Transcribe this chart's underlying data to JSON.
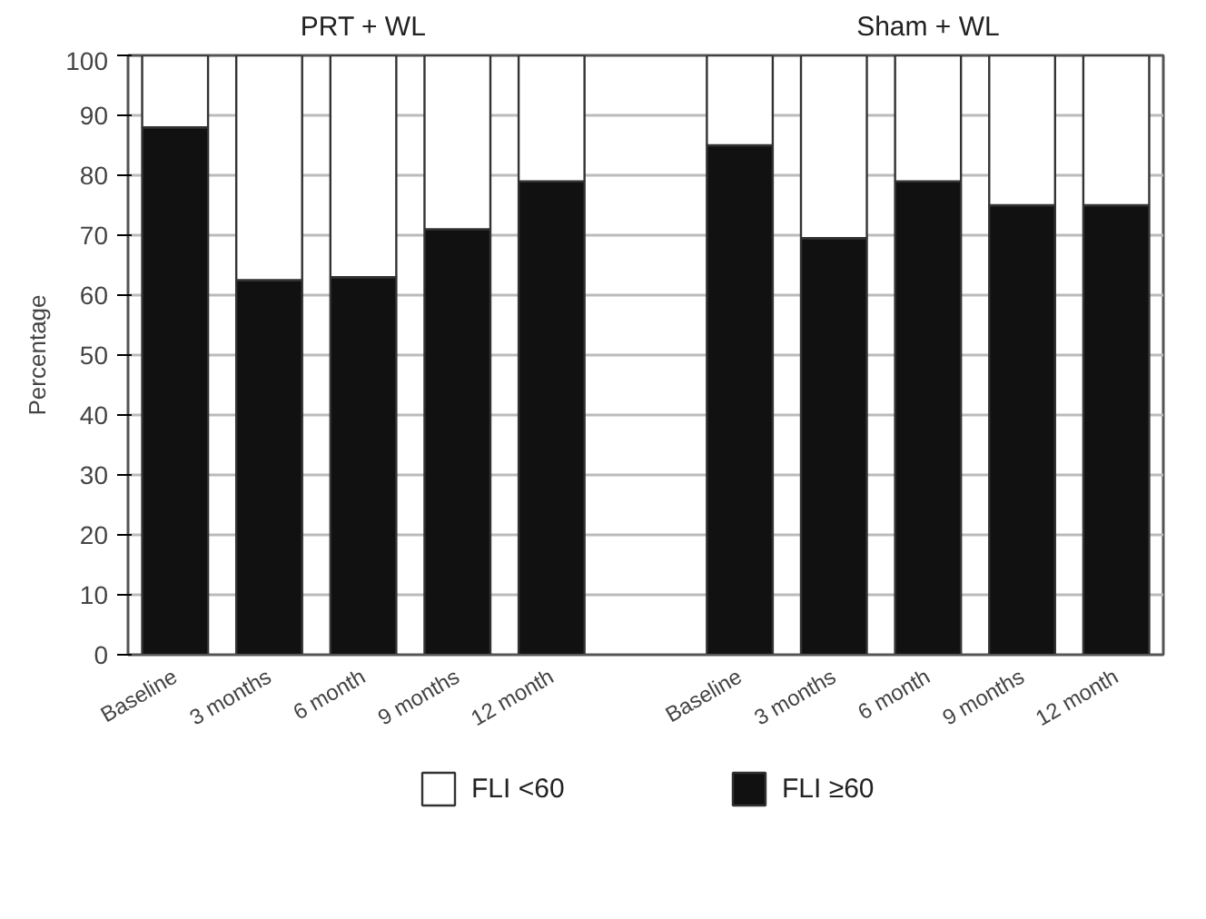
{
  "chart_data": {
    "type": "bar",
    "stacked": true,
    "ylabel": "Percentage",
    "annotations": [
      "PRT + WL",
      "Sham + WL"
    ],
    "categories": [
      "Baseline",
      "3 months",
      "6 month",
      "9 months",
      "12 month",
      null,
      "Baseline",
      "3 months",
      "6 month",
      "9 months",
      "12 month"
    ],
    "series": [
      {
        "name": "FLI ≥60",
        "color": "#111111",
        "values": [
          88,
          62.5,
          63,
          71,
          79,
          null,
          85,
          69.5,
          79,
          75,
          75
        ]
      },
      {
        "name": "FLI <60",
        "color": "#ffffff",
        "values": [
          12,
          37.5,
          37,
          29,
          21,
          null,
          15,
          30.5,
          21,
          25,
          25
        ]
      }
    ],
    "ylim": [
      0,
      100
    ],
    "yticks": [
      0,
      10,
      20,
      30,
      40,
      50,
      60,
      70,
      80,
      90,
      100
    ],
    "grid": "y",
    "legend": "bottom"
  }
}
